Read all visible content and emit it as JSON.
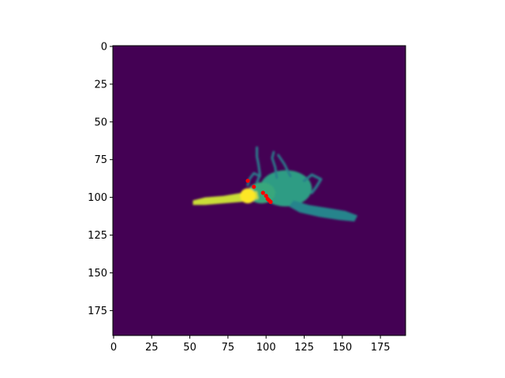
{
  "chart_data": {
    "type": "heatmap",
    "title": "",
    "xlabel": "",
    "ylabel": "",
    "image_size": [
      192,
      192
    ],
    "xlim": [
      0,
      192
    ],
    "ylim": [
      192,
      0
    ],
    "y_axis_inverted": true,
    "xticks": [
      0,
      25,
      50,
      75,
      100,
      125,
      150,
      175
    ],
    "yticks": [
      0,
      25,
      50,
      75,
      100,
      125,
      150,
      175
    ],
    "xtick_labels": [
      "0",
      "25",
      "50",
      "75",
      "100",
      "125",
      "150",
      "175"
    ],
    "ytick_labels": [
      "0",
      "25",
      "50",
      "75",
      "100",
      "125",
      "150",
      "175"
    ],
    "colormap": "viridis",
    "background_color": "#440154",
    "regions": [
      {
        "name": "body",
        "shape": "ellipse",
        "center": [
          113,
          94
        ],
        "radii": [
          17,
          12
        ],
        "intensity": 0.55
      },
      {
        "name": "torso-left",
        "shape": "ellipse",
        "center": [
          97,
          97
        ],
        "radii": [
          9,
          7
        ],
        "intensity": 0.6
      },
      {
        "name": "tail",
        "shape": "polygon",
        "points": [
          [
            118,
            102
          ],
          [
            128,
            105
          ],
          [
            140,
            107
          ],
          [
            152,
            109
          ],
          [
            160,
            112
          ],
          [
            158,
            116
          ],
          [
            148,
            115
          ],
          [
            135,
            113
          ],
          [
            122,
            110
          ],
          [
            115,
            106
          ]
        ],
        "intensity": 0.45
      },
      {
        "name": "snout",
        "shape": "polygon",
        "points": [
          [
            52,
            102
          ],
          [
            60,
            100
          ],
          [
            72,
            99
          ],
          [
            84,
            97
          ],
          [
            94,
            96
          ],
          [
            95,
            101
          ],
          [
            84,
            103
          ],
          [
            72,
            104
          ],
          [
            60,
            105
          ],
          [
            52,
            105
          ]
        ],
        "intensity": 0.92
      },
      {
        "name": "head",
        "shape": "ellipse",
        "center": [
          88,
          99
        ],
        "radii": [
          5,
          5
        ],
        "intensity": 1.0
      },
      {
        "name": "appendage-1",
        "shape": "polyline",
        "points": [
          [
            94,
            90
          ],
          [
            96,
            85
          ],
          [
            95,
            78
          ],
          [
            94,
            73
          ],
          [
            94,
            67
          ]
        ],
        "width": 1.6,
        "intensity": 0.42
      },
      {
        "name": "appendage-2",
        "shape": "polyline",
        "points": [
          [
            96,
            86
          ],
          [
            92,
            84
          ],
          [
            89,
            88
          ],
          [
            88,
            92
          ]
        ],
        "width": 1.5,
        "intensity": 0.42
      },
      {
        "name": "appendage-3",
        "shape": "polyline",
        "points": [
          [
            107,
            87
          ],
          [
            106,
            80
          ],
          [
            104,
            74
          ],
          [
            105,
            70
          ]
        ],
        "width": 1.5,
        "intensity": 0.42
      },
      {
        "name": "appendage-4",
        "shape": "polyline",
        "points": [
          [
            116,
            86
          ],
          [
            112,
            78
          ],
          [
            108,
            72
          ]
        ],
        "width": 1.5,
        "intensity": 0.42
      },
      {
        "name": "appendage-5",
        "shape": "polyline",
        "points": [
          [
            125,
            89
          ],
          [
            130,
            85
          ],
          [
            136,
            88
          ],
          [
            133,
            93
          ],
          [
            130,
            97
          ]
        ],
        "width": 1.7,
        "intensity": 0.42
      }
    ],
    "points": {
      "color": "#ff0000",
      "x": [
        88,
        92,
        98,
        100,
        101,
        102,
        103
      ],
      "y": [
        89,
        93,
        97,
        99,
        101,
        102,
        103
      ]
    }
  }
}
